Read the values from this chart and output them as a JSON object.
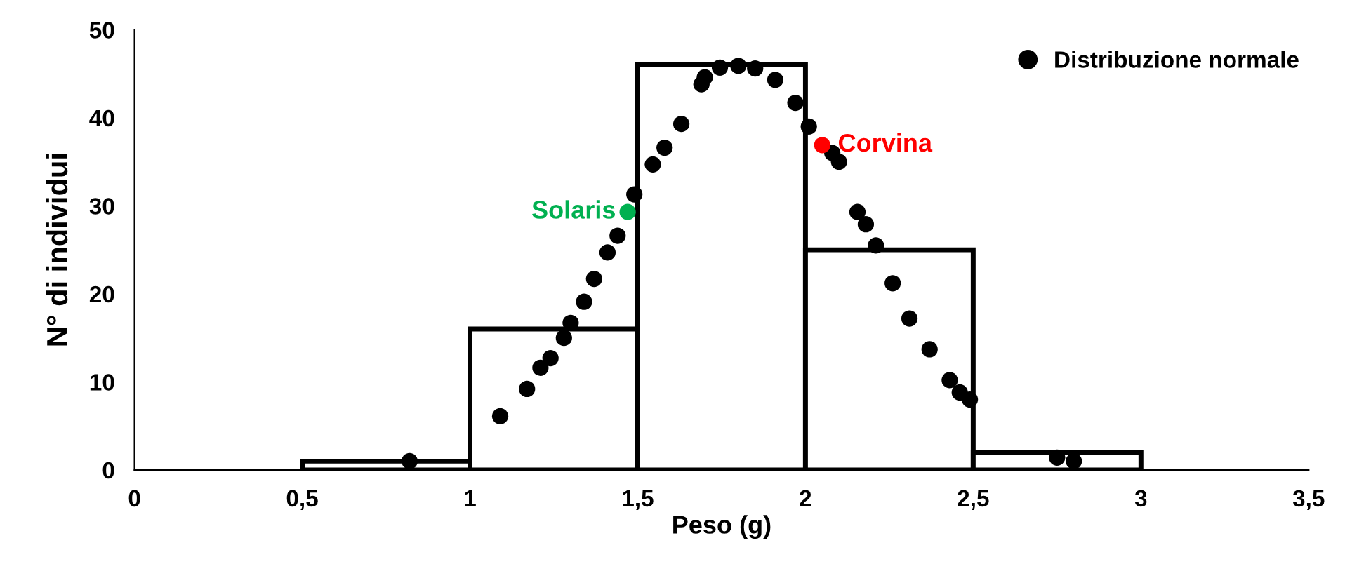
{
  "chart_data": {
    "type": "histogram",
    "xlabel": "Peso (g)",
    "ylabel": "N° di individui",
    "xlim": [
      0,
      3.5
    ],
    "ylim": [
      0,
      50
    ],
    "xticks": [
      0,
      {
        "value": 0.5,
        "label": "0,5"
      },
      1,
      {
        "value": 1.5,
        "label": "1,5"
      },
      2,
      {
        "value": 2.5,
        "label": "2,5"
      },
      3,
      {
        "value": 3.5,
        "label": "3,5"
      }
    ],
    "yticks": [
      0,
      10,
      20,
      30,
      40,
      50
    ],
    "grid": false,
    "legend": "top right",
    "series": [
      {
        "color": "#000000",
        "bins": [
          0.5,
          1,
          1.5,
          2,
          2.5,
          3
        ],
        "values": [
          1,
          16,
          46,
          25,
          2
        ]
      },
      {
        "type": "scatter",
        "name": "Distribuzione normale",
        "color": "#000000",
        "x": [
          0.82,
          1.09,
          1.17,
          1.21,
          1.24,
          1.28,
          1.3,
          1.34,
          1.37,
          1.41,
          1.44,
          1.49,
          1.545,
          1.58,
          1.63,
          1.69,
          1.7,
          1.745,
          1.8,
          1.85,
          1.91,
          1.97,
          2.01,
          2.08,
          2.1,
          2.155,
          2.18,
          2.21,
          2.26,
          2.31,
          2.37,
          2.43,
          2.46,
          2.49,
          2.75,
          2.8
        ],
        "values": [
          1.0,
          6.1,
          9.2,
          11.6,
          12.7,
          15.0,
          16.7,
          19.1,
          21.7,
          24.7,
          26.6,
          31.3,
          34.7,
          36.6,
          39.3,
          43.8,
          44.6,
          45.7,
          45.9,
          45.6,
          44.3,
          41.7,
          39.0,
          36.0,
          35.0,
          29.3,
          27.9,
          25.5,
          21.2,
          17.2,
          13.7,
          10.2,
          8.8,
          8.0,
          1.4,
          1.0
        ]
      },
      {
        "type": "scatter",
        "name": "Solaris",
        "color": "#00b050",
        "x": [
          1.47
        ],
        "values": [
          29.3
        ]
      },
      {
        "type": "scatter",
        "name": "Corvina",
        "color": "#ff0000",
        "x": [
          2.05
        ],
        "values": [
          36.9
        ]
      }
    ]
  }
}
